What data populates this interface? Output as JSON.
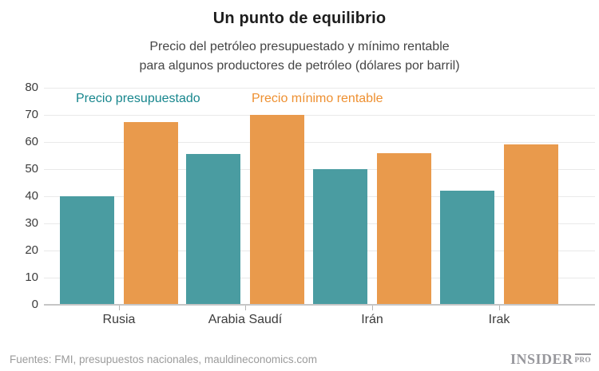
{
  "header": {
    "title": "Un punto de equilibrio",
    "subtitle_lines": [
      "Precio del petróleo presupuestado y mínimo rentable",
      "para algunos productores de petróleo (dólares por barril)"
    ]
  },
  "colors": {
    "bar_teal": "#4a9ca1",
    "bar_orange": "#e99a4c",
    "legend_teal": "#17868d",
    "legend_orange": "#ee9031",
    "grid": "#e9e9e9",
    "axis": "#c6c6c6",
    "text_dark": "#1d1d1d",
    "text_medium": "#3c3c3c",
    "footer_gray": "#9b9b9b"
  },
  "chart_data": {
    "type": "bar",
    "title": "Un punto de equilibrio",
    "subtitle": "Precio del petróleo presupuestado y mínimo rentable para algunos productores de petróleo (dólares por barril)",
    "categories": [
      "Rusia",
      "Arabia Saudí",
      "Irán",
      "Irak"
    ],
    "series": [
      {
        "key": "presupuestado",
        "name": "Precio presupuestado",
        "color": "#4a9ca1",
        "values": [
          40,
          55.5,
          50,
          42
        ]
      },
      {
        "key": "minimo-rentable",
        "name": "Precio mínimo rentable",
        "color": "#e99a4c",
        "values": [
          67.5,
          70,
          56,
          59
        ]
      }
    ],
    "ylabel": "",
    "xlabel": "",
    "ylim": [
      0,
      80
    ],
    "yticks": [
      80,
      70,
      60,
      50,
      40,
      30,
      20,
      10,
      0
    ],
    "grid": true,
    "legend_position": "top"
  },
  "footer": {
    "source": "Fuentes: FMI, presupuestos nacionales, mauldineconomics.com",
    "brand": "INSIDER",
    "brand_suffix": "PRO"
  }
}
